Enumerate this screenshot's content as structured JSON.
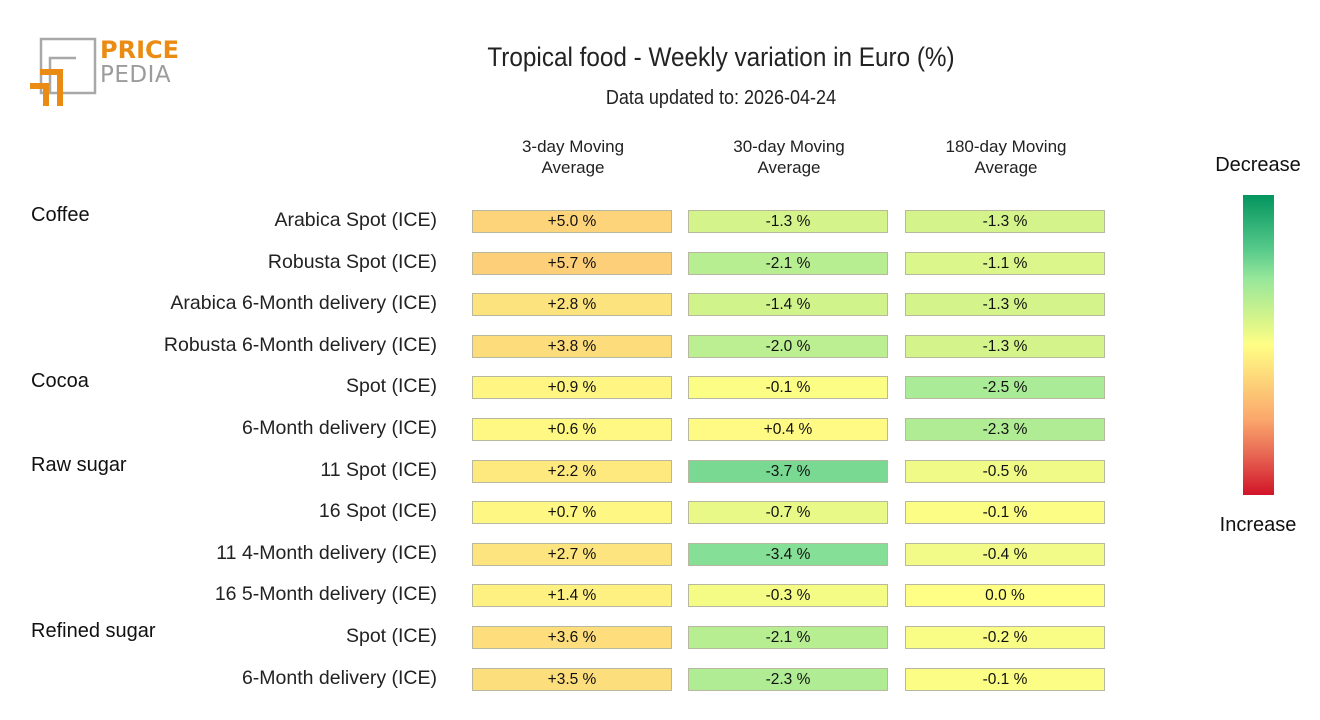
{
  "logo": {
    "line1": "PRICE",
    "line2": "PEDIA"
  },
  "header": {
    "title": "Tropical food - Weekly variation in Euro (%)",
    "subtitle": "Data updated to: 2026-04-24"
  },
  "columns": [
    {
      "line1": "3-day Moving",
      "line2": "Average"
    },
    {
      "line1": "30-day Moving",
      "line2": "Average"
    },
    {
      "line1": "180-day Moving",
      "line2": "Average"
    }
  ],
  "legend": {
    "top": "Decrease",
    "bottom": "Increase"
  },
  "chart_data": {
    "type": "heatmap",
    "title": "Tropical food - Weekly variation in Euro (%)",
    "subtitle": "Data updated to: 2026-04-24",
    "x_categories": [
      "3-day Moving Average",
      "30-day Moving Average",
      "180-day Moving Average"
    ],
    "colorscale": {
      "low_label": "Decrease",
      "high_label": "Increase",
      "low_color": "#04955f",
      "mid_color": "#fffe85",
      "high_color": "#d11428"
    },
    "groups": [
      {
        "name": "Coffee",
        "rows": [
          {
            "label": "Arabica Spot (ICE)",
            "values": [
              5.0,
              -1.3,
              -1.3
            ],
            "display": [
              "+5.0 %",
              "-1.3 %",
              "-1.3 %"
            ]
          },
          {
            "label": "Robusta Spot (ICE)",
            "values": [
              5.7,
              -2.1,
              -1.1
            ],
            "display": [
              "+5.7 %",
              "-2.1 %",
              "-1.1 %"
            ]
          },
          {
            "label": "Arabica 6-Month delivery (ICE)",
            "values": [
              2.8,
              -1.4,
              -1.3
            ],
            "display": [
              "+2.8 %",
              "-1.4 %",
              "-1.3 %"
            ]
          },
          {
            "label": "Robusta 6-Month delivery (ICE)",
            "values": [
              3.8,
              -2.0,
              -1.3
            ],
            "display": [
              "+3.8 %",
              "-2.0 %",
              "-1.3 %"
            ]
          }
        ]
      },
      {
        "name": "Cocoa",
        "rows": [
          {
            "label": "Spot (ICE)",
            "values": [
              0.9,
              -0.1,
              -2.5
            ],
            "display": [
              "+0.9 %",
              "-0.1 %",
              "-2.5 %"
            ]
          },
          {
            "label": "6-Month delivery (ICE)",
            "values": [
              0.6,
              0.4,
              -2.3
            ],
            "display": [
              "+0.6 %",
              "+0.4 %",
              "-2.3 %"
            ]
          }
        ]
      },
      {
        "name": "Raw sugar",
        "rows": [
          {
            "label": "11 Spot (ICE)",
            "values": [
              2.2,
              -3.7,
              -0.5
            ],
            "display": [
              "+2.2 %",
              "-3.7 %",
              "-0.5 %"
            ]
          },
          {
            "label": "16 Spot (ICE)",
            "values": [
              0.7,
              -0.7,
              -0.1
            ],
            "display": [
              "+0.7 %",
              "-0.7 %",
              "-0.1 %"
            ]
          },
          {
            "label": "11 4-Month delivery (ICE)",
            "values": [
              2.7,
              -3.4,
              -0.4
            ],
            "display": [
              "+2.7 %",
              "-3.4 %",
              "-0.4 %"
            ]
          },
          {
            "label": "16 5-Month delivery (ICE)",
            "values": [
              1.4,
              -0.3,
              0.0
            ],
            "display": [
              "+1.4 %",
              "-0.3 %",
              "0.0 %"
            ]
          }
        ]
      },
      {
        "name": "Refined sugar",
        "rows": [
          {
            "label": "Spot (ICE)",
            "values": [
              3.6,
              -2.1,
              -0.2
            ],
            "display": [
              "+3.6 %",
              "-2.1 %",
              "-0.2 %"
            ]
          },
          {
            "label": "6-Month delivery (ICE)",
            "values": [
              3.5,
              -2.3,
              -0.1
            ],
            "display": [
              "+3.5 %",
              "-2.3 %",
              "-0.1 %"
            ]
          }
        ]
      }
    ]
  }
}
